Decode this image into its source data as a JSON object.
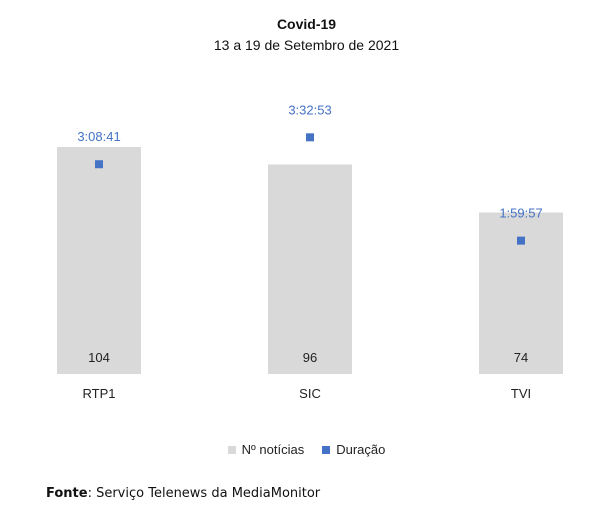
{
  "chart_data": {
    "type": "bar",
    "title": "Covid-19",
    "subtitle": "13 a 19 de Setembro de 2021",
    "categories": [
      "RTP1",
      "SIC",
      "TVI"
    ],
    "series": [
      {
        "name": "Nº notícias",
        "type": "bar",
        "values": [
          104,
          96,
          74
        ],
        "color": "#d9d9d9"
      },
      {
        "name": "Duração",
        "type": "scatter",
        "values_seconds": [
          11321,
          12773,
          7197
        ],
        "labels": [
          "3:08:41",
          "3:32:53",
          "1:59:57"
        ],
        "color": "#4472c4"
      }
    ],
    "legend_position": "bottom",
    "grid": false,
    "ylim_count": [
      0,
      104
    ],
    "ylim_seconds": [
      0,
      14000
    ]
  },
  "footer": {
    "label": "Fonte",
    "text": ": Serviço Telenews da MediaMonitor"
  }
}
